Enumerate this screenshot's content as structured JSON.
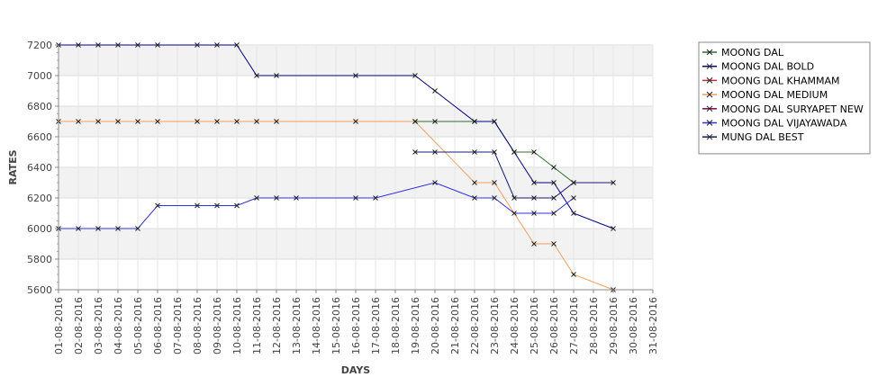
{
  "chart_data": {
    "type": "line",
    "xlabel": "DAYS",
    "ylabel": "RATES",
    "ylim": [
      5600,
      7200
    ],
    "y_ticks": [
      5600,
      5800,
      6000,
      6200,
      6400,
      6600,
      6800,
      7000,
      7200
    ],
    "grid": "horizontal alternating bands",
    "legend_position": "right",
    "x": [
      "01-08-2016",
      "02-08-2016",
      "03-08-2016",
      "04-08-2016",
      "05-08-2016",
      "06-08-2016",
      "07-08-2016",
      "08-08-2016",
      "09-08-2016",
      "10-08-2016",
      "11-08-2016",
      "12-08-2016",
      "13-08-2016",
      "14-08-2016",
      "15-08-2016",
      "16-08-2016",
      "17-08-2016",
      "18-08-2016",
      "19-08-2016",
      "20-08-2016",
      "21-08-2016",
      "22-08-2016",
      "23-08-2016",
      "24-08-2016",
      "25-08-2016",
      "26-08-2016",
      "27-08-2016",
      "28-08-2016",
      "29-08-2016",
      "30-08-2016",
      "31-08-2016"
    ],
    "series": [
      {
        "name": "MOONG DAL",
        "color": "#2d6e2d",
        "values": [
          null,
          null,
          null,
          null,
          null,
          null,
          null,
          null,
          null,
          null,
          null,
          null,
          null,
          null,
          null,
          null,
          null,
          null,
          6700,
          6700,
          null,
          6700,
          6700,
          6500,
          6500,
          6400,
          6300,
          null,
          null,
          null,
          null
        ]
      },
      {
        "name": "MOONG DAL BOLD",
        "color": "#000080",
        "values": [
          7200,
          7200,
          7200,
          7200,
          7200,
          7200,
          null,
          7200,
          7200,
          7200,
          7000,
          7000,
          null,
          null,
          null,
          7000,
          null,
          null,
          7000,
          6900,
          null,
          6700,
          6700,
          6500,
          6300,
          6300,
          6100,
          null,
          6000,
          null,
          null
        ]
      },
      {
        "name": "MOONG DAL KHAMMAM",
        "color": "#c03030",
        "values": [
          null,
          null,
          null,
          null,
          null,
          null,
          null,
          null,
          null,
          null,
          null,
          null,
          null,
          null,
          null,
          null,
          null,
          null,
          null,
          null,
          null,
          null,
          null,
          null,
          null,
          null,
          null,
          null,
          null,
          null,
          null
        ]
      },
      {
        "name": "MOONG DAL MEDIUM",
        "color": "#f0a060",
        "values": [
          6700,
          6700,
          6700,
          6700,
          6700,
          6700,
          null,
          6700,
          6700,
          6700,
          6700,
          6700,
          null,
          null,
          null,
          6700,
          null,
          null,
          6700,
          null,
          null,
          6300,
          6300,
          null,
          5900,
          5900,
          5700,
          null,
          5600,
          null,
          null
        ]
      },
      {
        "name": "MOONG DAL SURYAPET NEW",
        "color": "#8b0050",
        "values": [
          null,
          null,
          null,
          null,
          null,
          null,
          null,
          null,
          null,
          null,
          null,
          null,
          null,
          null,
          null,
          null,
          null,
          null,
          null,
          null,
          null,
          null,
          null,
          null,
          null,
          null,
          null,
          null,
          null,
          null,
          null
        ]
      },
      {
        "name": "MOONG DAL VIJAYAWADA",
        "color": "#3030e0",
        "values": [
          6000,
          6000,
          6000,
          6000,
          6000,
          6150,
          null,
          6150,
          6150,
          6150,
          6200,
          6200,
          6200,
          null,
          null,
          6200,
          6200,
          null,
          null,
          6300,
          null,
          6200,
          6200,
          6100,
          6100,
          6100,
          6200,
          null,
          null,
          null,
          null
        ]
      },
      {
        "name": "MUNG DAL BEST",
        "color": "#1a1a70",
        "values": [
          null,
          null,
          null,
          null,
          null,
          null,
          null,
          null,
          null,
          null,
          null,
          null,
          null,
          null,
          null,
          null,
          null,
          null,
          6500,
          6500,
          null,
          6500,
          6500,
          6200,
          6200,
          6200,
          6300,
          null,
          6300,
          null,
          null
        ]
      }
    ]
  }
}
